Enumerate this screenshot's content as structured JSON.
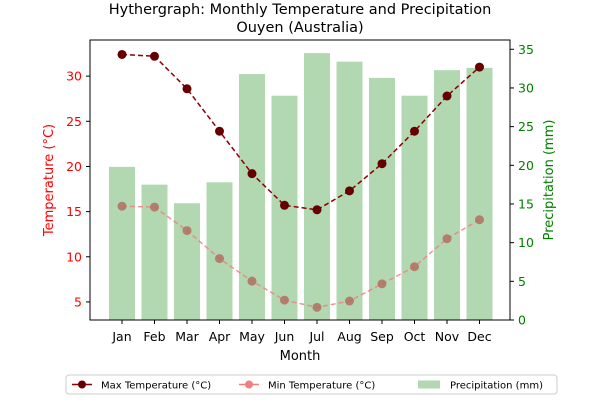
{
  "chart_data": {
    "type": "bar+line",
    "title_line1": "Hythergraph: Monthly Temperature and Precipitation",
    "title_line2": "Ouyen (Australia)",
    "xlabel": "Month",
    "ylabel_left": "Temperature (°C)",
    "ylabel_right": "Precipitation (mm)",
    "categories": [
      "Jan",
      "Feb",
      "Mar",
      "Apr",
      "May",
      "Jun",
      "Jul",
      "Aug",
      "Sep",
      "Oct",
      "Nov",
      "Dec"
    ],
    "left_axis": {
      "ylim": [
        3.0,
        34.0
      ],
      "ticks": [
        5,
        10,
        15,
        20,
        25,
        30
      ],
      "color": "#ff0000"
    },
    "right_axis": {
      "ylim": [
        0,
        36.2
      ],
      "ticks": [
        0,
        5,
        10,
        15,
        20,
        25,
        30,
        35
      ],
      "color": "#008000"
    },
    "series": [
      {
        "name": "Max Temperature (°C)",
        "kind": "line",
        "color": "#8b0000",
        "dashed": true,
        "axis": "left",
        "values": [
          32.4,
          32.2,
          28.6,
          23.9,
          19.2,
          15.7,
          15.2,
          17.3,
          20.3,
          23.9,
          27.8,
          31.0
        ]
      },
      {
        "name": "Min Temperature (°C)",
        "kind": "line",
        "color": "#f08080",
        "dashed": true,
        "axis": "left",
        "values": [
          15.6,
          15.5,
          12.9,
          9.8,
          7.3,
          5.2,
          4.4,
          5.1,
          7.0,
          8.9,
          12.0,
          14.1
        ]
      },
      {
        "name": "Precipitation (mm)",
        "kind": "bar",
        "color": "#b2d8b2",
        "axis": "right",
        "values": [
          19.8,
          17.5,
          15.1,
          17.8,
          31.8,
          29.0,
          34.5,
          33.4,
          31.3,
          29.0,
          32.3,
          32.6
        ]
      }
    ],
    "legend_position": "bottom-center"
  }
}
